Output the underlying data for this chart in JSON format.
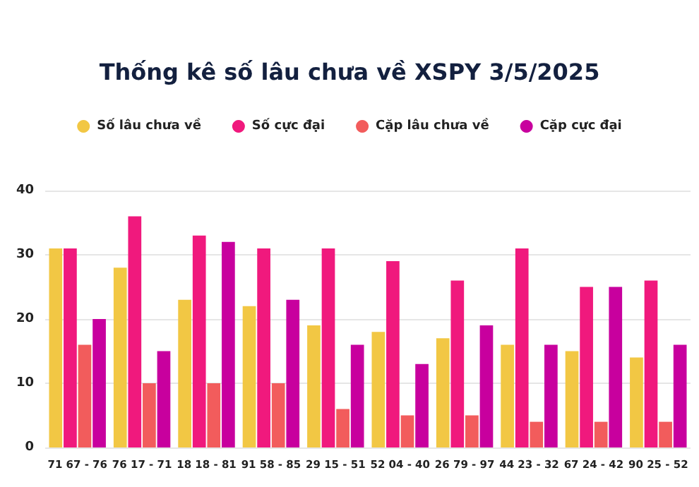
{
  "chart_data": {
    "type": "bar",
    "title": "Thống kê số lâu chưa về XSPY 3/5/2025",
    "categories": [
      "71 67 - 76",
      "76 17 - 71",
      "18 18 - 81",
      "91 58 - 85",
      "29 15 - 51",
      "52 04 - 40",
      "26 79 - 97",
      "44 23 - 32",
      "67 24 - 42",
      "90 25 - 52"
    ],
    "series": [
      {
        "name": "Số lâu chưa về",
        "color": "#f2c744",
        "values": [
          31,
          28,
          23,
          22,
          19,
          18,
          17,
          16,
          15,
          14
        ]
      },
      {
        "name": "Số cực đại",
        "color": "#f0197d",
        "values": [
          31,
          36,
          33,
          31,
          31,
          29,
          26,
          31,
          25,
          26
        ]
      },
      {
        "name": "Cặp lâu chưa về",
        "color": "#f25c5c",
        "values": [
          16,
          10,
          10,
          10,
          6,
          5,
          5,
          4,
          4,
          4
        ]
      },
      {
        "name": "Cặp cực đại",
        "color": "#c8009e",
        "values": [
          20,
          15,
          32,
          23,
          16,
          13,
          19,
          16,
          25,
          16
        ]
      }
    ],
    "ylim": [
      0,
      40
    ],
    "yticks": [
      0,
      10,
      20,
      30,
      40
    ],
    "grid": "y",
    "legend": "top"
  }
}
